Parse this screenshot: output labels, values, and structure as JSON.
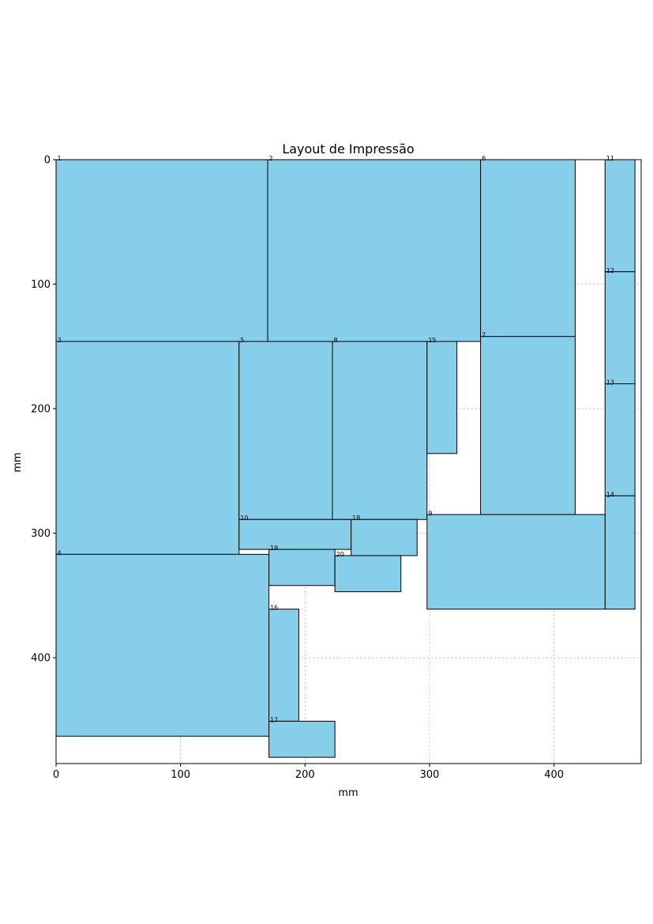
{
  "chart_data": {
    "type": "rectangles",
    "title": "Layout de Impressão",
    "xlabel": "mm",
    "ylabel": "mm",
    "xlim": [
      0,
      470
    ],
    "ylim": [
      485,
      0
    ],
    "y_inverted": true,
    "grid": true,
    "xticks": [
      0,
      100,
      200,
      300,
      400
    ],
    "yticks": [
      0,
      100,
      200,
      300,
      400
    ],
    "fill_color": "#87ceeb",
    "edge_color": "#000000",
    "rectangles": [
      {
        "label": "1",
        "x": 0,
        "y": 0,
        "w": 170,
        "h": 146
      },
      {
        "label": "2",
        "x": 170,
        "y": 0,
        "w": 171,
        "h": 146
      },
      {
        "label": "6",
        "x": 341,
        "y": 0,
        "w": 76,
        "h": 142
      },
      {
        "label": "11",
        "x": 441,
        "y": 0,
        "w": 24,
        "h": 90
      },
      {
        "label": "12",
        "x": 441,
        "y": 90,
        "w": 24,
        "h": 90
      },
      {
        "label": "13",
        "x": 441,
        "y": 180,
        "w": 24,
        "h": 90
      },
      {
        "label": "14",
        "x": 441,
        "y": 270,
        "w": 24,
        "h": 91
      },
      {
        "label": "3",
        "x": 0,
        "y": 146,
        "w": 147,
        "h": 171
      },
      {
        "label": "5",
        "x": 147,
        "y": 146,
        "w": 75,
        "h": 143
      },
      {
        "label": "8",
        "x": 222,
        "y": 146,
        "w": 76,
        "h": 143
      },
      {
        "label": "15",
        "x": 298,
        "y": 146,
        "w": 24,
        "h": 90
      },
      {
        "label": "7",
        "x": 341,
        "y": 142,
        "w": 76,
        "h": 143
      },
      {
        "label": "9",
        "x": 298,
        "y": 285,
        "w": 143,
        "h": 76
      },
      {
        "label": "10",
        "x": 147,
        "y": 289,
        "w": 90,
        "h": 24
      },
      {
        "label": "18",
        "x": 237,
        "y": 289,
        "w": 53,
        "h": 29
      },
      {
        "label": "19",
        "x": 171,
        "y": 313,
        "w": 53,
        "h": 29
      },
      {
        "label": "20",
        "x": 224,
        "y": 318,
        "w": 53,
        "h": 29
      },
      {
        "label": "4",
        "x": 0,
        "y": 317,
        "w": 171,
        "h": 146
      },
      {
        "label": "16",
        "x": 171,
        "y": 361,
        "w": 24,
        "h": 90
      },
      {
        "label": "17",
        "x": 171,
        "y": 451,
        "w": 53,
        "h": 29
      }
    ]
  }
}
